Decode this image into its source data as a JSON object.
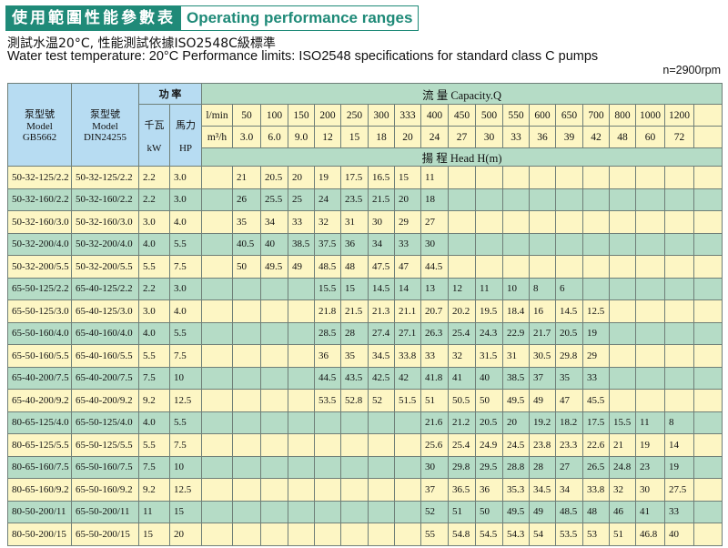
{
  "title": {
    "zh": "使用範圍性能參數表",
    "en": "Operating performance ranges"
  },
  "subtitle_zh": "測試水温20°C, 性能測試依據ISO2548C級標準",
  "subtitle_en": "Water test temperature: 20°C   Performance limits: ISO2548 specifications for standard class C pumps",
  "speed": "n=2900rpm",
  "header": {
    "model_gb": [
      "泵型號",
      "Model",
      "GB5662"
    ],
    "model_din": [
      "泵型號",
      "Model",
      "DIN24255"
    ],
    "power": "功 率",
    "kw": [
      "千瓦",
      "kW"
    ],
    "hp": [
      "馬力",
      "HP"
    ],
    "capacity": "流 量  Capacity.Q",
    "lmin_label": "l/min",
    "m3h_label": "m³/h",
    "head": "揚 程   Head  H(m)",
    "lmin": [
      "50",
      "100",
      "150",
      "200",
      "250",
      "300",
      "333",
      "400",
      "450",
      "500",
      "550",
      "600",
      "650",
      "700",
      "800",
      "1000",
      "1200"
    ],
    "m3h": [
      "3.0",
      "6.0",
      "9.0",
      "12",
      "15",
      "18",
      "20",
      "24",
      "27",
      "30",
      "33",
      "36",
      "39",
      "42",
      "48",
      "60",
      "72"
    ]
  },
  "colors": {
    "title": "#1f8a78",
    "header_blue": "#b7dcf2",
    "green": "#b5dcc6",
    "yellow": "#fdf6c4"
  },
  "rows": [
    {
      "gb": "50-32-125/2.2",
      "din": "50-32-125/2.2",
      "kw": "2.2",
      "hp": "3.0",
      "start": 0,
      "head": [
        "21",
        "20.5",
        "20",
        "19",
        "17.5",
        "16.5",
        "15",
        "11"
      ]
    },
    {
      "gb": "50-32-160/2.2",
      "din": "50-32-160/2.2",
      "kw": "2.2",
      "hp": "3.0",
      "start": 0,
      "head": [
        "26",
        "25.5",
        "25",
        "24",
        "23.5",
        "21.5",
        "20",
        "18"
      ]
    },
    {
      "gb": "50-32-160/3.0",
      "din": "50-32-160/3.0",
      "kw": "3.0",
      "hp": "4.0",
      "start": 0,
      "head": [
        "35",
        "34",
        "33",
        "32",
        "31",
        "30",
        "29",
        "27"
      ]
    },
    {
      "gb": "50-32-200/4.0",
      "din": "50-32-200/4.0",
      "kw": "4.0",
      "hp": "5.5",
      "start": 0,
      "head": [
        "40.5",
        "40",
        "38.5",
        "37.5",
        "36",
        "34",
        "33",
        "30"
      ]
    },
    {
      "gb": "50-32-200/5.5",
      "din": "50-32-200/5.5",
      "kw": "5.5",
      "hp": "7.5",
      "start": 0,
      "head": [
        "50",
        "49.5",
        "49",
        "48.5",
        "48",
        "47.5",
        "47",
        "44.5"
      ]
    },
    {
      "gb": "65-50-125/2.2",
      "din": "65-40-125/2.2",
      "kw": "2.2",
      "hp": "3.0",
      "start": 3,
      "head": [
        "15.5",
        "15",
        "14.5",
        "14",
        "13",
        "12",
        "11",
        "10",
        "8",
        "6"
      ]
    },
    {
      "gb": "65-50-125/3.0",
      "din": "65-40-125/3.0",
      "kw": "3.0",
      "hp": "4.0",
      "start": 3,
      "head": [
        "21.8",
        "21.5",
        "21.3",
        "21.1",
        "20.7",
        "20.2",
        "19.5",
        "18.4",
        "16",
        "14.5",
        "12.5"
      ]
    },
    {
      "gb": "65-50-160/4.0",
      "din": "65-40-160/4.0",
      "kw": "4.0",
      "hp": "5.5",
      "start": 3,
      "head": [
        "28.5",
        "28",
        "27.4",
        "27.1",
        "26.3",
        "25.4",
        "24.3",
        "22.9",
        "21.7",
        "20.5",
        "19"
      ]
    },
    {
      "gb": "65-50-160/5.5",
      "din": "65-40-160/5.5",
      "kw": "5.5",
      "hp": "7.5",
      "start": 3,
      "head": [
        "36",
        "35",
        "34.5",
        "33.8",
        "33",
        "32",
        "31.5",
        "31",
        "30.5",
        "29.8",
        "29"
      ]
    },
    {
      "gb": "65-40-200/7.5",
      "din": "65-40-200/7.5",
      "kw": "7.5",
      "hp": "10",
      "start": 3,
      "head": [
        "44.5",
        "43.5",
        "42.5",
        "42",
        "41.8",
        "41",
        "40",
        "38.5",
        "37",
        "35",
        "33"
      ]
    },
    {
      "gb": "65-40-200/9.2",
      "din": "65-40-200/9.2",
      "kw": "9.2",
      "hp": "12.5",
      "start": 3,
      "head": [
        "53.5",
        "52.8",
        "52",
        "51.5",
        "51",
        "50.5",
        "50",
        "49.5",
        "49",
        "47",
        "45.5"
      ]
    },
    {
      "gb": "80-65-125/4.0",
      "din": "65-50-125/4.0",
      "kw": "4.0",
      "hp": "5.5",
      "start": 7,
      "head": [
        "21.6",
        "21.2",
        "20.5",
        "20",
        "19.2",
        "18.2",
        "17.5",
        "15.5",
        "11",
        "8"
      ]
    },
    {
      "gb": "80-65-125/5.5",
      "din": "65-50-125/5.5",
      "kw": "5.5",
      "hp": "7.5",
      "start": 7,
      "head": [
        "25.6",
        "25.4",
        "24.9",
        "24.5",
        "23.8",
        "23.3",
        "22.6",
        "21",
        "19",
        "14"
      ]
    },
    {
      "gb": "80-65-160/7.5",
      "din": "65-50-160/7.5",
      "kw": "7.5",
      "hp": "10",
      "start": 7,
      "head": [
        "30",
        "29.8",
        "29.5",
        "28.8",
        "28",
        "27",
        "26.5",
        "24.8",
        "23",
        "19"
      ]
    },
    {
      "gb": "80-65-160/9.2",
      "din": "65-50-160/9.2",
      "kw": "9.2",
      "hp": "12.5",
      "start": 7,
      "head": [
        "37",
        "36.5",
        "36",
        "35.3",
        "34.5",
        "34",
        "33.8",
        "32",
        "30",
        "27.5"
      ]
    },
    {
      "gb": "80-50-200/11",
      "din": "65-50-200/11",
      "kw": "11",
      "hp": "15",
      "start": 7,
      "head": [
        "52",
        "51",
        "50",
        "49.5",
        "49",
        "48.5",
        "48",
        "46",
        "41",
        "33"
      ]
    },
    {
      "gb": "80-50-200/15",
      "din": "65-50-200/15",
      "kw": "15",
      "hp": "20",
      "start": 7,
      "head": [
        "55",
        "54.8",
        "54.5",
        "54.3",
        "54",
        "53.5",
        "53",
        "51",
        "46.8",
        "40"
      ]
    }
  ]
}
